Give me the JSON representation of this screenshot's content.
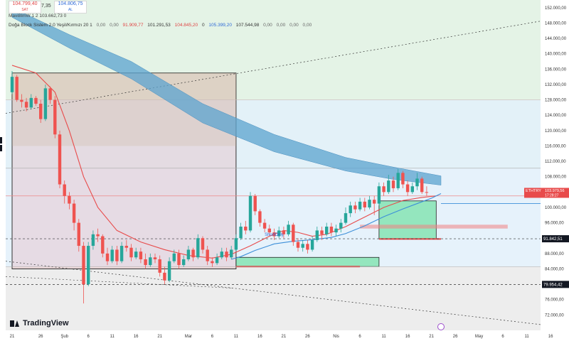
{
  "header": {
    "sell_price": "104.799,40",
    "sell_label": "SAT",
    "spread": "7,35",
    "buy_price": "104.806,75",
    "buy_label": "AL",
    "symbol_row": "Mavi8ImW 1 2 103.662,73 0",
    "indicator_name": "Doğa Block Sistem 2.0 Yeşil/Kırmızı 20 1",
    "indicator_values": [
      "0,00",
      "0,00",
      "91.909,77",
      "101.291,53",
      "104.845,20",
      "0",
      "105.399,20",
      "107.544,98",
      "0,00",
      "0,00",
      "0,00",
      "0,00"
    ]
  },
  "branding": {
    "logo_text": "TradingView"
  },
  "colors": {
    "up": "#26a69a",
    "down": "#ef5350",
    "ribbon": "#5ba3cf",
    "ma_red": "#e84b4b",
    "ma_blue": "#3d8fd9"
  },
  "chart_data": {
    "type": "candlestick",
    "y_axis": {
      "min": 68000,
      "max": 154000,
      "ticks": [
        "152.000,00",
        "148.000,00",
        "144.000,00",
        "140.000,00",
        "136.000,00",
        "132.000,00",
        "128.000,00",
        "124.000,00",
        "120.000,00",
        "116.000,00",
        "112.000,00",
        "108.000,00",
        "104.000,00",
        "100.000,00",
        "96.000,00",
        "92.000,00",
        "88.000,00",
        "84.000,00",
        "80.000,00",
        "76.000,00",
        "72.000,00"
      ],
      "tick_values": [
        152000,
        148000,
        144000,
        140000,
        136000,
        132000,
        128000,
        124000,
        120000,
        116000,
        112000,
        108000,
        104000,
        100000,
        96000,
        92000,
        88000,
        84000,
        80000,
        76000,
        72000
      ]
    },
    "x_axis": {
      "labels": [
        "21",
        "26",
        "Şub",
        "6",
        "11",
        "16",
        "21",
        "Mar",
        "6",
        "11",
        "16",
        "21",
        "26",
        "Nis",
        "6",
        "11",
        "16",
        "21",
        "26",
        "May",
        "6",
        "11",
        "16"
      ],
      "label_index": [
        0,
        6,
        11,
        16,
        21,
        26,
        31,
        37,
        42,
        47,
        52,
        57,
        62,
        68,
        73,
        78,
        83,
        88,
        93,
        98,
        103,
        108,
        113
      ]
    },
    "price_labels": [
      {
        "symbol": "ETHTRY",
        "value": "103.979,56",
        "price": 103980,
        "time": "17:28:27"
      },
      {
        "value": "91.842,51",
        "price": 91842
      },
      {
        "value": "79.954,42",
        "price": 79954
      }
    ],
    "annotations": [
      {
        "text": "ShortOnly",
        "index": 53,
        "price": 92600
      }
    ],
    "candles": [
      [
        130000,
        134000,
        135500,
        129500
      ],
      [
        134000,
        128000,
        134500,
        127500
      ],
      [
        128000,
        127500,
        129500,
        126000
      ],
      [
        127500,
        126000,
        128500,
        125000
      ],
      [
        126000,
        128500,
        129500,
        125500
      ],
      [
        128500,
        127000,
        129000,
        126500
      ],
      [
        127000,
        123000,
        128000,
        122000
      ],
      [
        123000,
        131000,
        132000,
        122500
      ],
      [
        131000,
        128000,
        131500,
        127000
      ],
      [
        128000,
        119000,
        129000,
        118000
      ],
      [
        119000,
        106000,
        120000,
        105000
      ],
      [
        106000,
        103000,
        107000,
        101000
      ],
      [
        103000,
        101000,
        104000,
        99500
      ],
      [
        101000,
        96000,
        102000,
        94000
      ],
      [
        96000,
        90000,
        97000,
        88500
      ],
      [
        90000,
        80000,
        91000,
        75000
      ],
      [
        80000,
        90000,
        91000,
        79500
      ],
      [
        90000,
        93000,
        94000,
        89000
      ],
      [
        93000,
        92500,
        94500,
        91000
      ],
      [
        92500,
        88000,
        93000,
        87000
      ],
      [
        88000,
        86000,
        89500,
        85000
      ],
      [
        86000,
        89000,
        90000,
        85500
      ],
      [
        89000,
        86000,
        90000,
        85000
      ],
      [
        86000,
        90000,
        91000,
        85500
      ],
      [
        90000,
        89500,
        91500,
        88500
      ],
      [
        89500,
        87000,
        90500,
        86000
      ],
      [
        87000,
        88500,
        89500,
        86500
      ],
      [
        88500,
        86500,
        89500,
        85500
      ],
      [
        86500,
        85000,
        88000,
        84000
      ],
      [
        85000,
        87000,
        88000,
        84500
      ],
      [
        87000,
        86500,
        88000,
        85500
      ],
      [
        86500,
        83000,
        87500,
        82000
      ],
      [
        83000,
        81000,
        84500,
        80000
      ],
      [
        81000,
        86000,
        87000,
        80500
      ],
      [
        86000,
        88000,
        89000,
        85500
      ],
      [
        88000,
        85000,
        89000,
        84000
      ],
      [
        85000,
        86500,
        87500,
        84500
      ],
      [
        86500,
        89000,
        90000,
        86000
      ],
      [
        89000,
        87000,
        89500,
        86000
      ],
      [
        87000,
        92000,
        93000,
        86500
      ],
      [
        92000,
        89000,
        92500,
        88000
      ],
      [
        89000,
        86000,
        90000,
        85000
      ],
      [
        86000,
        85500,
        87000,
        84500
      ],
      [
        85500,
        87000,
        88000,
        85000
      ],
      [
        87000,
        88500,
        89500,
        86500
      ],
      [
        88500,
        87000,
        89500,
        86000
      ],
      [
        87000,
        89000,
        90000,
        86500
      ],
      [
        89000,
        92000,
        93000,
        88500
      ],
      [
        92000,
        95000,
        96000,
        91500
      ],
      [
        95000,
        94000,
        96500,
        93000
      ],
      [
        94000,
        103000,
        104000,
        93500
      ],
      [
        103000,
        99000,
        103500,
        98000
      ],
      [
        99000,
        96000,
        99500,
        95000
      ],
      [
        96000,
        94500,
        97000,
        93500
      ],
      [
        94500,
        93500,
        95500,
        92500
      ],
      [
        93500,
        92500,
        94500,
        91500
      ],
      [
        92500,
        94000,
        95000,
        92000
      ],
      [
        94000,
        93000,
        95000,
        92000
      ],
      [
        93000,
        95500,
        96500,
        92500
      ],
      [
        95500,
        91000,
        96000,
        90000
      ],
      [
        91000,
        89500,
        92000,
        88500
      ],
      [
        89500,
        90500,
        91500,
        88500
      ],
      [
        90500,
        89000,
        91500,
        88000
      ],
      [
        89000,
        91500,
        92500,
        88500
      ],
      [
        91500,
        94000,
        95000,
        91000
      ],
      [
        94000,
        93000,
        95000,
        91500
      ],
      [
        93000,
        95000,
        96000,
        92500
      ],
      [
        95000,
        93500,
        96000,
        92500
      ],
      [
        93500,
        94500,
        95500,
        92500
      ],
      [
        94500,
        96000,
        97000,
        93500
      ],
      [
        96000,
        98500,
        100000,
        95500
      ],
      [
        98500,
        100500,
        101500,
        97500
      ],
      [
        100500,
        99500,
        101500,
        98500
      ],
      [
        99500,
        101500,
        102500,
        99000
      ],
      [
        101500,
        100000,
        102500,
        99000
      ],
      [
        100000,
        102000,
        103000,
        99500
      ],
      [
        102000,
        101000,
        103000,
        98000
      ],
      [
        101000,
        105500,
        106500,
        100500
      ],
      [
        105500,
        104000,
        106500,
        103000
      ],
      [
        104000,
        107000,
        108500,
        103500
      ],
      [
        107000,
        105000,
        108000,
        104000
      ],
      [
        105000,
        109000,
        110000,
        104500
      ],
      [
        109000,
        106000,
        109500,
        105000
      ],
      [
        106000,
        104000,
        107000,
        103000
      ],
      [
        104000,
        105500,
        106500,
        103500
      ],
      [
        105500,
        107500,
        109000,
        104500
      ],
      [
        107500,
        104000,
        108000,
        103500
      ],
      [
        104000,
        103980,
        105500,
        103000
      ]
    ],
    "ma_red": [
      [
        0,
        137000
      ],
      [
        5,
        135000
      ],
      [
        9,
        130000
      ],
      [
        12,
        120000
      ],
      [
        15,
        108000
      ],
      [
        18,
        100000
      ],
      [
        22,
        94000
      ],
      [
        27,
        91000
      ],
      [
        32,
        89000
      ],
      [
        37,
        87500
      ],
      [
        42,
        86800
      ],
      [
        46,
        87800
      ],
      [
        50,
        90000
      ],
      [
        54,
        92500
      ],
      [
        57,
        94000
      ],
      [
        60,
        93500
      ],
      [
        63,
        92500
      ],
      [
        66,
        93000
      ],
      [
        70,
        95000
      ],
      [
        74,
        97500
      ],
      [
        78,
        100000
      ],
      [
        82,
        101800
      ],
      [
        86,
        102600
      ],
      [
        89,
        103000
      ]
    ],
    "ma_blue": [
      [
        46,
        86500
      ],
      [
        48,
        87200
      ],
      [
        51,
        88800
      ],
      [
        55,
        90500
      ],
      [
        59,
        91200
      ],
      [
        63,
        91600
      ],
      [
        67,
        92200
      ],
      [
        70,
        93200
      ],
      [
        74,
        95200
      ],
      [
        78,
        97600
      ],
      [
        82,
        99600
      ],
      [
        85,
        101000
      ],
      [
        88,
        102400
      ],
      [
        90,
        103600
      ]
    ],
    "ribbon": {
      "upper": [
        [
          0,
          152000
        ],
        [
          12,
          145000
        ],
        [
          25,
          138000
        ],
        [
          40,
          127000
        ],
        [
          55,
          119000
        ],
        [
          70,
          113000
        ],
        [
          80,
          110500
        ],
        [
          90,
          108200
        ]
      ],
      "lower": [
        [
          0,
          149500
        ],
        [
          12,
          141500
        ],
        [
          25,
          133500
        ],
        [
          40,
          122000
        ],
        [
          55,
          114500
        ],
        [
          70,
          109500
        ],
        [
          80,
          107300
        ],
        [
          90,
          105800
        ]
      ]
    },
    "zones": [
      {
        "name": "upper-range",
        "from_index": 0,
        "to_index": 47,
        "top": 135000,
        "bottom": 84000
      },
      {
        "name": "bull-box-1",
        "from_index": 47,
        "to_index": 77,
        "top": 87000,
        "bottom": 84600
      },
      {
        "name": "bull-box-2",
        "from_index": 77,
        "to_index": 89,
        "top": 101700,
        "bottom": 91800
      },
      {
        "name": "bear-bar",
        "from_index": 73,
        "to_index": 104,
        "top": 95500,
        "bottom": 94500
      }
    ],
    "levels": [
      {
        "name": "level-128",
        "price": 128000
      },
      {
        "name": "level-110",
        "price": 110200
      },
      {
        "name": "level-103",
        "price": 103000
      },
      {
        "name": "level-91",
        "price": 91842
      },
      {
        "name": "level-84",
        "price": 84600
      },
      {
        "name": "level-80",
        "price": 79954
      }
    ],
    "grid": false,
    "legend": "top-left"
  }
}
